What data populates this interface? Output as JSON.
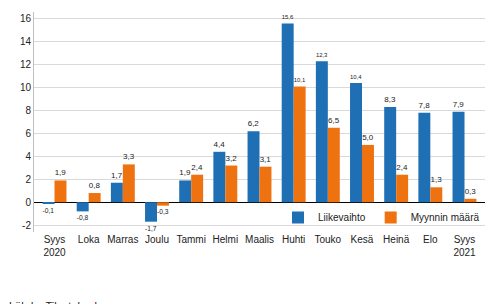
{
  "chart_data": {
    "type": "bar",
    "categories": [
      "Syys\n2020",
      "Loka",
      "Marras",
      "Joulu",
      "Tammi",
      "Helmi",
      "Maalis",
      "Huhti",
      "Touko",
      "Kesä",
      "Heinä",
      "Elo",
      "Syys\n2021"
    ],
    "series": [
      {
        "name": "Liikevaihto",
        "color": "#1f6fb4",
        "values": [
          -0.1,
          -0.8,
          1.7,
          -1.7,
          1.9,
          4.4,
          6.2,
          15.6,
          12.3,
          10.4,
          8.3,
          7.8,
          7.9
        ],
        "value_labels": [
          "-0,1",
          "-0,8",
          "1,7",
          "-1,7",
          "1,9",
          "4,4",
          "6,2",
          "15,6",
          "12,3",
          "10,4",
          "8,3",
          "7,8",
          "7,9"
        ]
      },
      {
        "name": "Myynnin määrä",
        "color": "#ee7310",
        "values": [
          1.9,
          0.8,
          3.3,
          -0.3,
          2.4,
          3.2,
          3.1,
          10.1,
          6.5,
          5.0,
          2.4,
          1.3,
          0.3
        ],
        "value_labels": [
          "1,9",
          "0,8",
          "3,3",
          "-0,3",
          "2,4",
          "3,2",
          "3,1",
          "10,1",
          "6,5",
          "5,0",
          "2,4",
          "1,3",
          "0,3"
        ]
      }
    ],
    "ylim": [
      -2.6,
      16.6
    ],
    "yticks": [
      -2,
      0,
      2,
      4,
      6,
      8,
      10,
      12,
      14,
      16
    ],
    "grid": true,
    "legend": "lower right",
    "data_labels": true,
    "source": "Lähde: Tilastokeskus"
  }
}
